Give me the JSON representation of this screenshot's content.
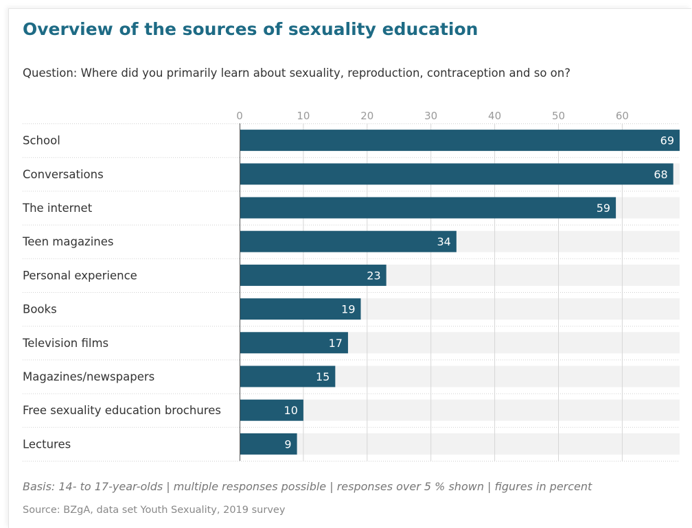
{
  "title": "Overview of the sources of sexuality education",
  "question": "Question: Where did you primarily learn about sexuality, reproduction, contraception and so on?",
  "basis": "Basis: 14- to 17-year-olds | multiple responses possible | responses over 5 % shown | figures in percent",
  "source": "Source: BZgA, data set Youth Sexuality, 2019 survey",
  "colors": {
    "title": "#1e6b85",
    "bar": "#1f5a73",
    "track": "#f2f2f2",
    "grid": "#d6d6d6"
  },
  "chart_data": {
    "type": "bar",
    "orientation": "horizontal",
    "title": "Overview of the sources of sexuality education",
    "categories": [
      "School",
      "Conversations",
      "The internet",
      "Teen magazines",
      "Personal experience",
      "Books",
      "Television films",
      "Magazines/newspapers",
      "Free sexuality education brochures",
      "Lectures"
    ],
    "values": [
      69,
      68,
      59,
      34,
      23,
      19,
      17,
      15,
      10,
      9
    ],
    "xlim": [
      0,
      69
    ],
    "ticks": [
      0,
      10,
      20,
      30,
      40,
      50,
      60
    ],
    "xaxis_position": "top",
    "grid": true,
    "data_labels": true,
    "legend": "none"
  }
}
